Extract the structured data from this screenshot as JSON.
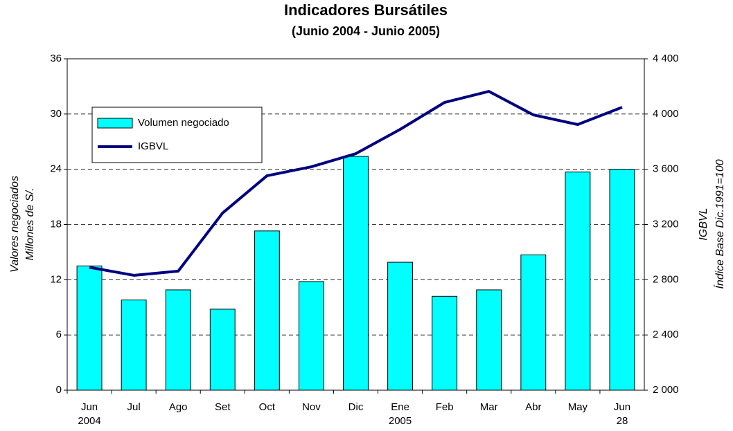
{
  "chart_data": {
    "type": "bar",
    "title": "Indicadores Bursátiles",
    "subtitle": "(Junio 2004 - Junio 2005)",
    "y_label": [
      "Valores negociados",
      "Millones de S/."
    ],
    "y2_label": [
      "IGBVL",
      "Índice Base Dic.1991=100"
    ],
    "categories": [
      "Jun",
      "Jul",
      "Ago",
      "Set",
      "Oct",
      "Nov",
      "Dic",
      "Ene",
      "Feb",
      "Mar",
      "Abr",
      "May",
      "Jun"
    ],
    "category_sublabels": [
      "2004",
      null,
      null,
      null,
      null,
      null,
      null,
      "2005",
      null,
      null,
      null,
      null,
      "28"
    ],
    "series": [
      {
        "name": "Volumen negociado",
        "type": "bar",
        "color": "#00ffff",
        "values": [
          13.5,
          9.8,
          10.9,
          8.8,
          17.3,
          11.8,
          25.4,
          13.9,
          10.2,
          10.9,
          14.7,
          23.7,
          24.0
        ]
      },
      {
        "name": "IGBVL",
        "type": "line",
        "axis": "y2",
        "color": "#000080",
        "values": [
          2890,
          2832,
          2862,
          3283,
          3553,
          3618,
          3713,
          3889,
          4084,
          4164,
          3994,
          3924,
          4049
        ]
      }
    ],
    "ylim": [
      0,
      36
    ],
    "yticks": [
      0,
      6,
      12,
      18,
      24,
      30,
      36
    ],
    "y2lim": [
      2000,
      4400
    ],
    "y2ticks": [
      {
        "value": 2000,
        "label": "2 000"
      },
      {
        "value": 2400,
        "label": "2 400"
      },
      {
        "value": 2800,
        "label": "2 800"
      },
      {
        "value": 3200,
        "label": "3 200"
      },
      {
        "value": 3600,
        "label": "3 600"
      },
      {
        "value": 4000,
        "label": "4 000"
      },
      {
        "value": 4400,
        "label": "4 400"
      }
    ],
    "grid": true,
    "legend": "upper left"
  }
}
